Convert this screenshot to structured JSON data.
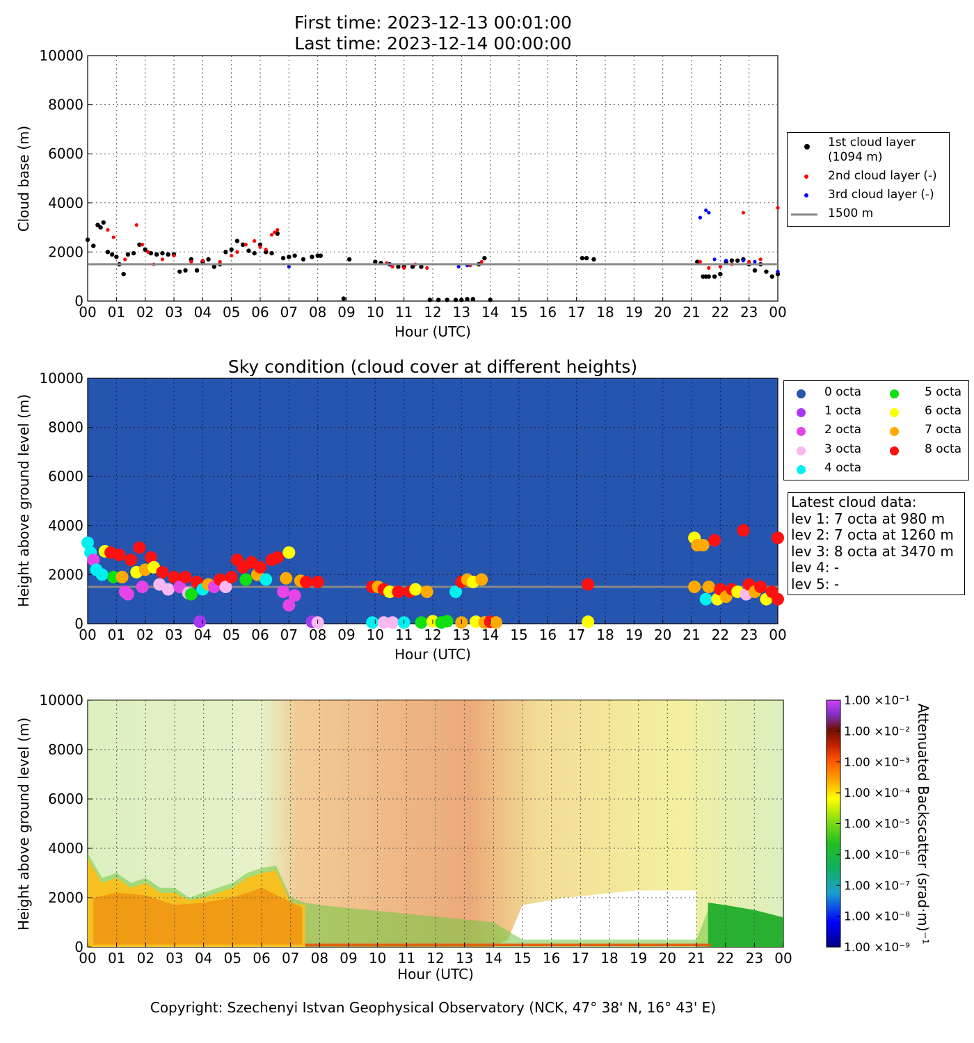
{
  "header": {
    "first_time": "First time: 2023-12-13 00:01:00",
    "last_time": "Last time: 2023-12-14 00:00:00"
  },
  "x_ticks": [
    "00",
    "01",
    "02",
    "03",
    "04",
    "05",
    "06",
    "07",
    "08",
    "09",
    "10",
    "11",
    "12",
    "13",
    "14",
    "15",
    "16",
    "17",
    "18",
    "19",
    "20",
    "21",
    "22",
    "23",
    "00"
  ],
  "y_ticks": [
    "0",
    "2000",
    "4000",
    "6000",
    "8000",
    "10000"
  ],
  "panel1": {
    "ylabel": "Cloud base (m)",
    "xlabel": "Hour (UTC)",
    "legend": {
      "layer1": "1st cloud layer",
      "layer1_value": "(1094 m)",
      "layer2": "2nd cloud layer (-)",
      "layer3": "3rd cloud layer (-)",
      "ref_line": "1500 m"
    }
  },
  "panel2": {
    "title": "Sky condition (cloud cover at different heights)",
    "ylabel": "Height above ground level (m)",
    "xlabel": "Hour (UTC)",
    "legend": [
      {
        "label": "0 octa",
        "color": "#2655b0"
      },
      {
        "label": "1 octa",
        "color": "#a63af2"
      },
      {
        "label": "2 octa",
        "color": "#e545e8"
      },
      {
        "label": "3 octa",
        "color": "#f9b8f2"
      },
      {
        "label": "4 octa",
        "color": "#00f0f0"
      },
      {
        "label": "5 octa",
        "color": "#11e011"
      },
      {
        "label": "6 octa",
        "color": "#ffff00"
      },
      {
        "label": "7 octa",
        "color": "#ffaa00"
      },
      {
        "label": "8 octa",
        "color": "#ff1111"
      }
    ],
    "latest": {
      "heading": "Latest cloud data:",
      "lev1": "lev 1: 7 octa at 980 m",
      "lev2": "lev 2: 7 octa at 1260 m",
      "lev3": "lev 3: 8 octa at 3470 m",
      "lev4": "lev 4: -",
      "lev5": "lev 5: -"
    }
  },
  "panel3": {
    "ylabel": "Height above ground level (m)",
    "xlabel": "Hour (UTC)",
    "colorbar_label": "Attenuated Backscatter (srad·m)⁻¹",
    "colorbar_ticks": [
      "1.00 ×10⁻¹",
      "1.00 ×10⁻²",
      "1.00 ×10⁻³",
      "1.00 ×10⁻⁴",
      "1.00 ×10⁻⁵",
      "1.00 ×10⁻⁶",
      "1.00 ×10⁻⁷",
      "1.00 ×10⁻⁸",
      "1.00 ×10⁻⁹"
    ]
  },
  "footer": {
    "copyright": "Copyright: Szechenyi Istvan Geophysical Observatory (NCK, 47° 38' N, 16° 43' E)"
  },
  "chart_data": [
    {
      "type": "scatter",
      "title": "",
      "xlabel": "Hour (UTC)",
      "ylabel": "Cloud base (m)",
      "xlim": [
        0,
        24
      ],
      "ylim": [
        0,
        10000
      ],
      "grid": true,
      "legend_position": "right",
      "reference_line": 1500,
      "series": [
        {
          "name": "1st cloud layer (1094 m)",
          "color": "#000000",
          "x": [
            0.0,
            0.2,
            0.35,
            0.45,
            0.55,
            0.7,
            0.85,
            1.0,
            1.1,
            1.25,
            1.4,
            1.6,
            1.8,
            2.0,
            2.2,
            2.4,
            2.6,
            2.8,
            3.0,
            3.2,
            3.4,
            3.6,
            3.8,
            4.0,
            4.2,
            4.4,
            4.6,
            4.8,
            5.0,
            5.2,
            5.4,
            5.6,
            5.8,
            6.0,
            6.2,
            6.4,
            6.6,
            6.8,
            7.0,
            7.2,
            7.5,
            7.8,
            8.0,
            8.1,
            8.9,
            9.1,
            10.0,
            10.2,
            10.5,
            10.8,
            11.0,
            11.3,
            11.6,
            11.9,
            12.2,
            12.5,
            12.8,
            13.0,
            13.2,
            13.4,
            13.6,
            13.8,
            14.0,
            17.2,
            17.35,
            17.6,
            21.2,
            21.4,
            21.5,
            21.6,
            21.8,
            22.0,
            22.2,
            22.4,
            22.6,
            22.8,
            23.0,
            23.2,
            23.4,
            23.6,
            23.8,
            24.0
          ],
          "y": [
            2500,
            2250,
            3100,
            3000,
            3200,
            2000,
            1900,
            1800,
            1500,
            1100,
            1900,
            1950,
            2300,
            2100,
            1950,
            1900,
            1950,
            1900,
            1900,
            1200,
            1250,
            1700,
            1250,
            1600,
            1700,
            1400,
            1500,
            2000,
            2100,
            2450,
            2300,
            2050,
            1950,
            2300,
            2000,
            1950,
            2750,
            1750,
            1800,
            1850,
            1700,
            1800,
            1850,
            1850,
            100,
            1700,
            1600,
            1550,
            1500,
            1400,
            1400,
            1400,
            1400,
            50,
            50,
            50,
            50,
            50,
            80,
            80,
            1500,
            1750,
            50,
            1750,
            1750,
            1700,
            1600,
            1000,
            1000,
            1000,
            1000,
            1100,
            1600,
            1650,
            1650,
            1700,
            1500,
            1250,
            1500,
            1200,
            1000,
            1100
          ],
          "note": "values estimated from the plot"
        },
        {
          "name": "2nd cloud layer (-)",
          "color": "#ff0000",
          "x": [
            0.7,
            0.9,
            1.3,
            1.7,
            1.9,
            2.1,
            2.3,
            2.6,
            3.0,
            3.6,
            4.0,
            4.6,
            5.0,
            5.2,
            5.5,
            5.8,
            6.0,
            6.2,
            6.4,
            6.5,
            6.6,
            10.4,
            10.6,
            11.0,
            11.4,
            11.8,
            13.3,
            13.7,
            21.3,
            21.6,
            22.0,
            22.4,
            22.8,
            23.0,
            23.4,
            24.0
          ],
          "y": [
            2900,
            2600,
            1700,
            3100,
            2300,
            2000,
            1500,
            1700,
            1850,
            1600,
            1650,
            1600,
            1850,
            2000,
            2300,
            2450,
            2200,
            2100,
            2700,
            2800,
            2900,
            1550,
            1400,
            1350,
            1500,
            1350,
            1450,
            1600,
            1600,
            1350,
            1400,
            1500,
            3600,
            1600,
            1700,
            3800
          ]
        },
        {
          "name": "3rd cloud layer (-)",
          "color": "#0000ff",
          "x": [
            7.0,
            10.5,
            12.9,
            13.2,
            21.3,
            21.5,
            21.6,
            21.8,
            22.2,
            22.8,
            23.2,
            24.0
          ],
          "y": [
            1400,
            1500,
            1400,
            1450,
            3400,
            3700,
            3600,
            1700,
            1650,
            1650,
            1600,
            1200
          ]
        }
      ]
    },
    {
      "type": "scatter",
      "title": "Sky condition (cloud cover at different heights)",
      "xlabel": "Hour (UTC)",
      "ylabel": "Height above ground level (m)",
      "xlim": [
        0,
        24
      ],
      "ylim": [
        0,
        10000
      ],
      "background_octa": 0,
      "reference_line": 1500,
      "points": [
        [
          0.0,
          3300,
          4
        ],
        [
          0.1,
          2900,
          4
        ],
        [
          0.2,
          2600,
          2
        ],
        [
          0.3,
          2200,
          4
        ],
        [
          0.5,
          2000,
          4
        ],
        [
          0.6,
          2950,
          6
        ],
        [
          0.8,
          2900,
          8
        ],
        [
          0.9,
          1900,
          5
        ],
        [
          1.1,
          2800,
          8
        ],
        [
          1.2,
          1900,
          7
        ],
        [
          1.3,
          1300,
          2
        ],
        [
          1.4,
          1200,
          2
        ],
        [
          1.5,
          2600,
          8
        ],
        [
          1.7,
          2100,
          6
        ],
        [
          1.8,
          3100,
          8
        ],
        [
          1.9,
          1500,
          2
        ],
        [
          2.0,
          2200,
          7
        ],
        [
          2.2,
          2700,
          8
        ],
        [
          2.3,
          2300,
          6
        ],
        [
          2.5,
          1600,
          3
        ],
        [
          2.6,
          2100,
          8
        ],
        [
          2.8,
          1400,
          3
        ],
        [
          3.0,
          1900,
          8
        ],
        [
          3.2,
          1500,
          2
        ],
        [
          3.4,
          1900,
          8
        ],
        [
          3.5,
          1250,
          3
        ],
        [
          3.6,
          1200,
          5
        ],
        [
          3.8,
          1700,
          8
        ],
        [
          3.9,
          80,
          1
        ],
        [
          4.0,
          1400,
          4
        ],
        [
          4.2,
          1600,
          7
        ],
        [
          4.4,
          1500,
          2
        ],
        [
          4.6,
          1800,
          8
        ],
        [
          4.8,
          1500,
          3
        ],
        [
          5.0,
          1900,
          8
        ],
        [
          5.2,
          2600,
          8
        ],
        [
          5.4,
          2300,
          8
        ],
        [
          5.5,
          1800,
          5
        ],
        [
          5.7,
          2500,
          8
        ],
        [
          5.9,
          2000,
          7
        ],
        [
          6.0,
          2300,
          8
        ],
        [
          6.2,
          1800,
          4
        ],
        [
          6.4,
          2600,
          8
        ],
        [
          6.6,
          2700,
          8
        ],
        [
          6.8,
          1300,
          2
        ],
        [
          6.9,
          1850,
          7
        ],
        [
          7.0,
          2900,
          6
        ],
        [
          7.0,
          750,
          2
        ],
        [
          7.2,
          1150,
          2
        ],
        [
          7.4,
          1750,
          7
        ],
        [
          7.6,
          1700,
          8
        ],
        [
          7.8,
          80,
          1
        ],
        [
          8.0,
          1700,
          8
        ],
        [
          8.0,
          50,
          3
        ],
        [
          9.9,
          1500,
          8
        ],
        [
          9.9,
          50,
          4
        ],
        [
          10.1,
          1500,
          7
        ],
        [
          10.3,
          1400,
          8
        ],
        [
          10.3,
          50,
          3
        ],
        [
          10.5,
          1300,
          6
        ],
        [
          10.6,
          50,
          3
        ],
        [
          10.8,
          1300,
          8
        ],
        [
          11.0,
          50,
          4
        ],
        [
          11.2,
          1300,
          8
        ],
        [
          11.4,
          1400,
          6
        ],
        [
          11.6,
          50,
          5
        ],
        [
          11.8,
          1300,
          7
        ],
        [
          12.0,
          100,
          6
        ],
        [
          12.3,
          50,
          5
        ],
        [
          12.5,
          100,
          5
        ],
        [
          12.8,
          1300,
          4
        ],
        [
          13.0,
          1700,
          8
        ],
        [
          13.0,
          50,
          7
        ],
        [
          13.2,
          1800,
          7
        ],
        [
          13.4,
          1700,
          6
        ],
        [
          13.5,
          80,
          6
        ],
        [
          13.7,
          1800,
          7
        ],
        [
          13.8,
          50,
          7
        ],
        [
          14.0,
          80,
          8
        ],
        [
          14.2,
          50,
          7
        ],
        [
          17.4,
          1600,
          8
        ],
        [
          17.4,
          80,
          6
        ],
        [
          21.1,
          3500,
          6
        ],
        [
          21.1,
          1500,
          7
        ],
        [
          21.2,
          3200,
          7
        ],
        [
          21.4,
          3200,
          7
        ],
        [
          21.5,
          1000,
          4
        ],
        [
          21.6,
          1500,
          7
        ],
        [
          21.8,
          3400,
          8
        ],
        [
          21.9,
          1000,
          6
        ],
        [
          22.0,
          1400,
          8
        ],
        [
          22.2,
          1100,
          7
        ],
        [
          22.4,
          1400,
          8
        ],
        [
          22.6,
          1300,
          6
        ],
        [
          22.8,
          3800,
          8
        ],
        [
          22.9,
          1200,
          3
        ],
        [
          23.0,
          1600,
          8
        ],
        [
          23.2,
          1300,
          7
        ],
        [
          23.4,
          1500,
          8
        ],
        [
          23.6,
          1000,
          6
        ],
        [
          23.8,
          1300,
          8
        ],
        [
          24.0,
          3500,
          8
        ],
        [
          24.0,
          1000,
          8
        ]
      ],
      "point_format": [
        "hour",
        "height_m",
        "octa"
      ],
      "note": "positions estimated from the plot"
    },
    {
      "type": "heatmap",
      "title": "",
      "xlabel": "Hour (UTC)",
      "ylabel": "Height above ground level (m)",
      "xlim": [
        0,
        24
      ],
      "ylim": [
        0,
        10000
      ],
      "colorbar": {
        "label": "Attenuated Backscatter (srad·m)⁻¹",
        "log_min": -9,
        "log_max": -1,
        "scale": "log"
      },
      "boundary_layer_top_m": [
        [
          0.0,
          3800
        ],
        [
          0.5,
          2800
        ],
        [
          1.0,
          3000
        ],
        [
          1.5,
          2600
        ],
        [
          2.0,
          2800
        ],
        [
          2.5,
          2400
        ],
        [
          3.0,
          2400
        ],
        [
          3.5,
          2000
        ],
        [
          4.0,
          2200
        ],
        [
          4.5,
          2400
        ],
        [
          5.0,
          2600
        ],
        [
          5.5,
          3000
        ],
        [
          6.0,
          3200
        ],
        [
          6.5,
          3300
        ],
        [
          7.0,
          2000
        ],
        [
          7.5,
          1800
        ],
        [
          8.0,
          1700
        ],
        [
          14.0,
          1000
        ],
        [
          15.0,
          300
        ],
        [
          21.0,
          300
        ],
        [
          21.5,
          1800
        ],
        [
          22.0,
          1600
        ],
        [
          23.0,
          1400
        ],
        [
          24.0,
          1200
        ]
      ],
      "note": "approximate structure; values estimated"
    }
  ]
}
